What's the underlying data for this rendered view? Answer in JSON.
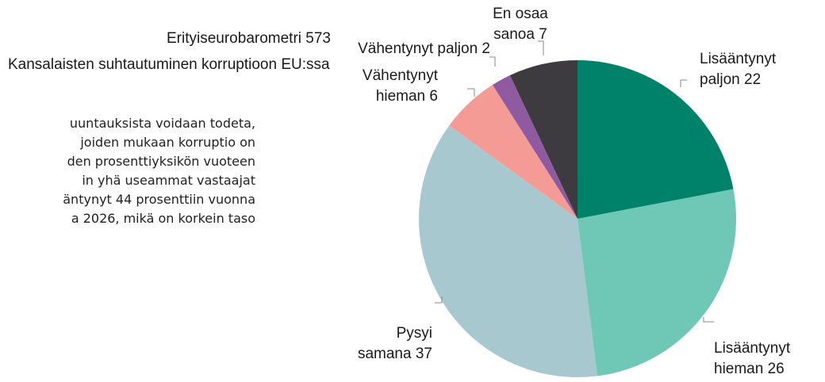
{
  "header": {
    "title": "Erityiseurobarometri 573",
    "subtitle": "Kansalaisten suhtautuminen korruptioon EU:ssa"
  },
  "paragraph": [
    "uuntauksista voidaan todeta,",
    "joiden mukaan korruptio on",
    "den prosenttiyksikön vuoteen",
    "in yhä useammat vastaajat",
    "äntynyt 44 prosenttiin vuonna",
    "a 2026, mikä on korkein taso"
  ],
  "chart_data": {
    "type": "pie",
    "categories": [
      "Lisääntynyt paljon",
      "Lisääntynyt hieman",
      "Pysyi samana",
      "Vähentynyt hieman",
      "Vähentynyt paljon",
      "En osaa sanoa"
    ],
    "values": [
      22,
      26,
      37,
      6,
      2,
      7
    ],
    "colors": [
      "#00826a",
      "#6fc8b6",
      "#a7c8ce",
      "#f49b96",
      "#8f5aa0",
      "#3d3a40"
    ]
  }
}
